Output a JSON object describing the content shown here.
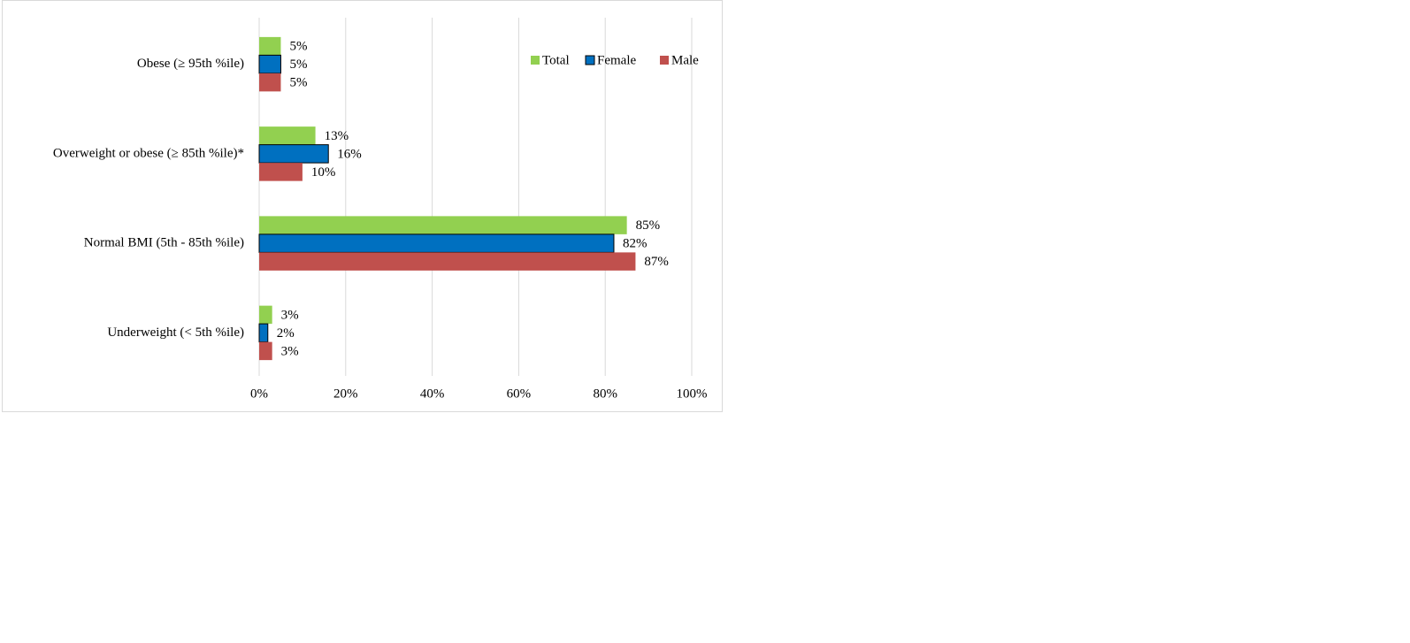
{
  "chart_data": {
    "type": "hbar",
    "categories": [
      "Obese (≥ 95th %ile)",
      "Overweight or obese (≥ 85th %ile)*",
      "Normal BMI (5th - 85th %ile)",
      "Underweight (< 5th %ile)"
    ],
    "series": [
      {
        "name": "Total",
        "color": "#92d050",
        "values": [
          5,
          13,
          85,
          3
        ],
        "value_labels": [
          "5%",
          "13%",
          "85%",
          "3%"
        ]
      },
      {
        "name": "Female",
        "color": "#0070c0",
        "values": [
          5,
          16,
          82,
          2
        ],
        "value_labels": [
          "5%",
          "16%",
          "82%",
          "2%"
        ]
      },
      {
        "name": "Male",
        "color": "#c0504d",
        "values": [
          5,
          10,
          87,
          3
        ],
        "value_labels": [
          "5%",
          "10%",
          "87%",
          "3%"
        ]
      }
    ],
    "xlim": [
      0,
      100
    ],
    "xticks": [
      {
        "value": 0,
        "label": "0%"
      },
      {
        "value": 20,
        "label": "20%"
      },
      {
        "value": 40,
        "label": "40%"
      },
      {
        "value": 60,
        "label": "60%"
      },
      {
        "value": 80,
        "label": "80%"
      },
      {
        "value": 100,
        "label": "100%"
      }
    ],
    "grid": true,
    "legend": "top-right"
  }
}
